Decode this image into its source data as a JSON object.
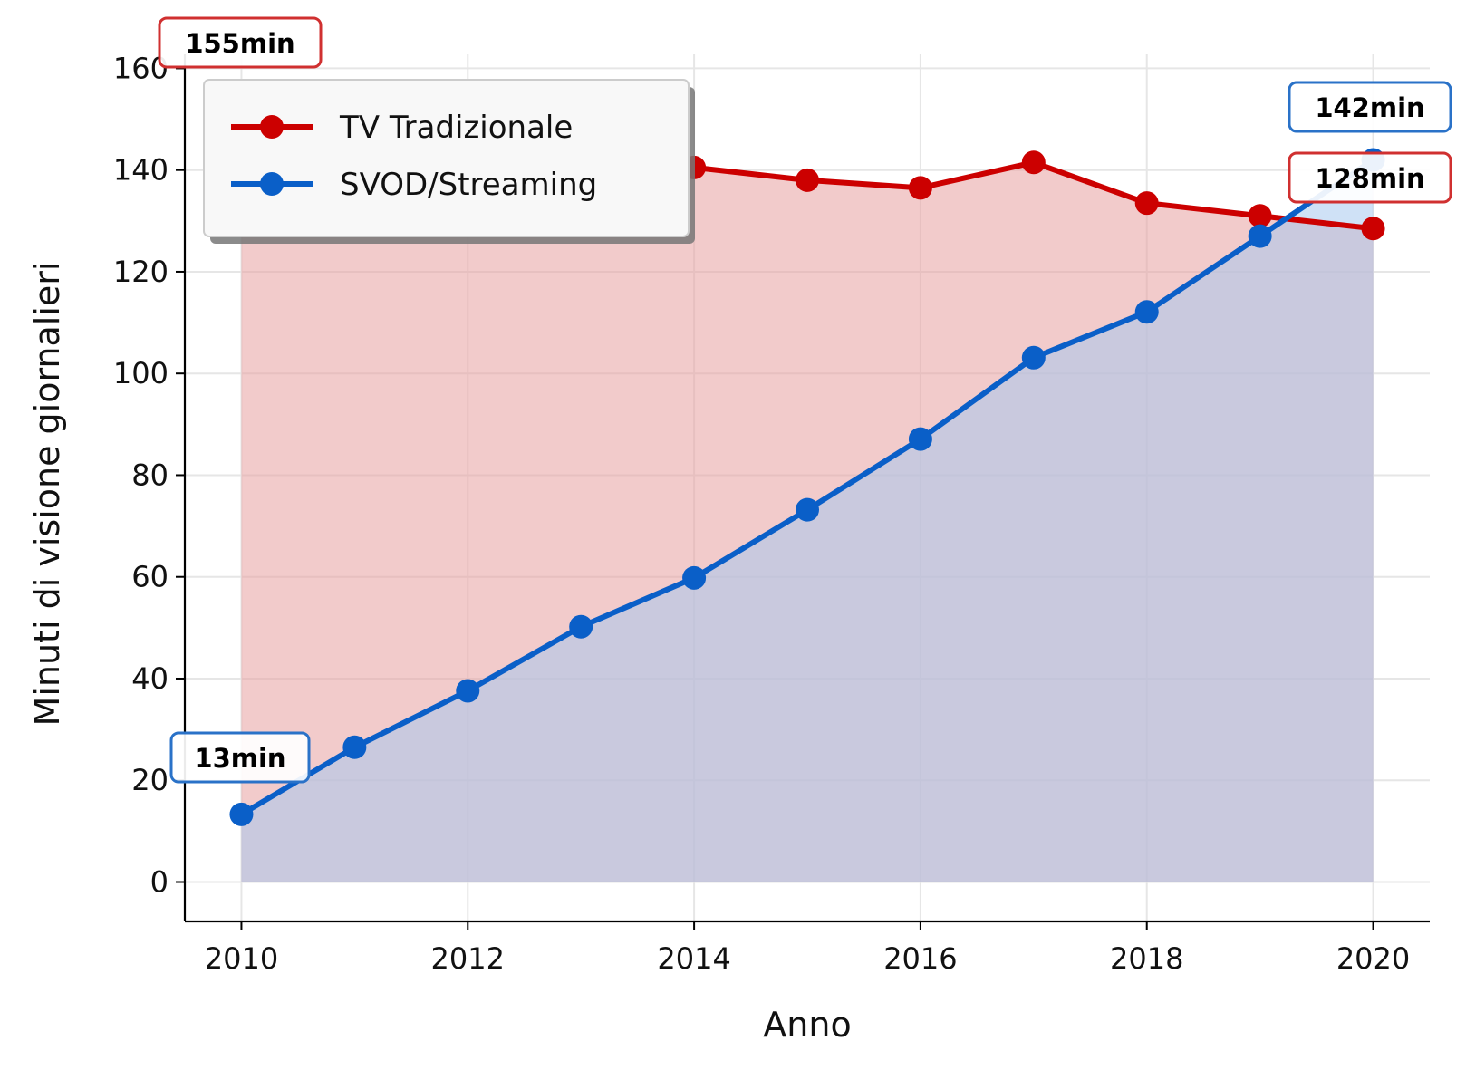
{
  "chart_data": {
    "type": "area",
    "title": "",
    "xlabel": "Anno",
    "ylabel": "Minuti di visione giornalieri",
    "x": [
      2010,
      2011,
      2012,
      2013,
      2014,
      2015,
      2016,
      2017,
      2018,
      2019,
      2020
    ],
    "xlim": [
      2009.5,
      2020.5
    ],
    "ylim": [
      -7.75,
      162.75
    ],
    "xticks": [
      2010,
      2012,
      2014,
      2016,
      2018,
      2020
    ],
    "yticks": [
      0,
      20,
      40,
      60,
      80,
      100,
      120,
      140,
      160
    ],
    "grid": true,
    "legend_position": "upper-left",
    "series": [
      {
        "name": "TV Tradizionale",
        "color": "#cc0000",
        "fill": "#e8a0a0",
        "values": [
          155,
          151.5,
          147.5,
          145,
          140.5,
          138,
          136.5,
          141.5,
          133.5,
          131,
          128.5
        ]
      },
      {
        "name": "SVOD/Streaming",
        "color": "#0a5fc8",
        "fill": "#a8c8ee",
        "values": [
          13.3,
          26.5,
          37.6,
          50.2,
          59.8,
          73.2,
          87.1,
          103.1,
          112.1,
          127,
          142
        ]
      }
    ],
    "annotations": [
      {
        "text": "155min",
        "series": 0,
        "x": 2010,
        "color": "#d03030"
      },
      {
        "text": "128min",
        "series": 0,
        "x": 2020,
        "color": "#d03030"
      },
      {
        "text": "13min",
        "series": 1,
        "x": 2010,
        "color": "#2a72c8"
      },
      {
        "text": "142min",
        "series": 1,
        "x": 2020,
        "color": "#2a72c8"
      }
    ]
  }
}
